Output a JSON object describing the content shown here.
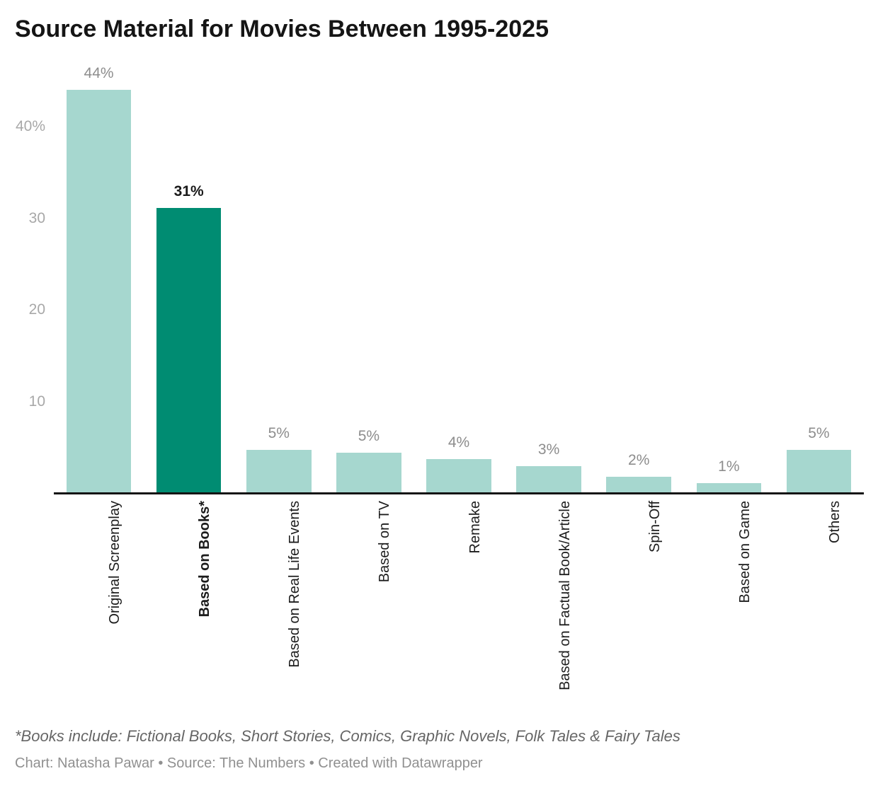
{
  "page": {
    "title": "Source Material for Movies Between 1995-2025",
    "footnote": "*Books include: Fictional Books, Short Stories, Comics, Graphic Novels, Folk Tales & Fairy Tales",
    "credit": "Chart: Natasha Pawar • Source: The Numbers • Created with Datawrapper"
  },
  "colors": {
    "background": "#ffffff",
    "bar": "#a6d7cf",
    "bar_highlight": "#008c72",
    "title_text": "#151515",
    "value_label": "#8d8d8d",
    "value_label_highlight": "#1a1a1a",
    "tick_label": "#a8a8a8",
    "category_label": "#1c1c1c",
    "axis_line": "#141414",
    "footnote_text": "#666666",
    "credit_text": "#909090"
  },
  "chart_data": {
    "type": "bar",
    "title": "Source Material for Movies Between 1995-2025",
    "xlabel": "",
    "ylabel": "",
    "unit": "%",
    "ylim": [
      0,
      45
    ],
    "grid": false,
    "legend": false,
    "yticks": [
      {
        "value": 40,
        "label": "40%"
      },
      {
        "value": 30,
        "label": "30"
      },
      {
        "value": 20,
        "label": "20"
      },
      {
        "value": 10,
        "label": "10"
      }
    ],
    "categories": [
      "Original Screenplay",
      "Based on Books*",
      "Based on Real Life Events",
      "Based on TV",
      "Remake",
      "Based on Factual Book/Article",
      "Spin-Off",
      "Based on Game",
      "Others"
    ],
    "values": [
      44,
      31,
      5,
      5,
      4,
      3,
      2,
      1,
      5
    ],
    "value_labels": [
      "44%",
      "31%",
      "5%",
      "5%",
      "4%",
      "3%",
      "2%",
      "1%",
      "5%"
    ],
    "rendered_bar_heights_pct": [
      44.0,
      31.1,
      4.7,
      4.4,
      3.7,
      2.9,
      1.8,
      1.1,
      4.7
    ],
    "highlight_index": 1
  }
}
